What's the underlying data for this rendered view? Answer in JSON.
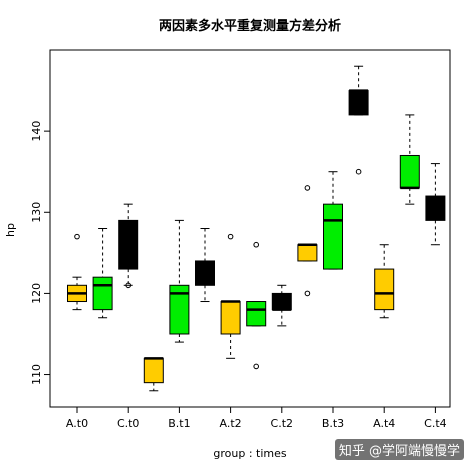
{
  "chart_data": {
    "type": "boxplot",
    "title": "两因素多水平重复测量方差分析",
    "xlabel": "group : times",
    "ylabel": "hp",
    "ylim": [
      106,
      150
    ],
    "yticks": [
      110,
      120,
      130,
      140
    ],
    "tick_labels": [
      "A.t0",
      "C.t0",
      "B.t1",
      "A.t2",
      "C.t2",
      "B.t3",
      "A.t4",
      "C.t4"
    ],
    "colors": {
      "gold": "#FFCC00",
      "green": "#00EE00",
      "black": "#000000",
      "median_on_black": "#000000"
    },
    "boxes": [
      {
        "min": 118,
        "q1": 119,
        "median": 120,
        "q3": 121,
        "max": 122,
        "outliers": [
          127
        ],
        "color": "gold"
      },
      {
        "min": 117,
        "q1": 118,
        "median": 121,
        "q3": 122,
        "max": 128,
        "outliers": [],
        "color": "green"
      },
      {
        "min": 121,
        "q1": 123,
        "median": 127,
        "q3": 129,
        "max": 131,
        "outliers": [
          121
        ],
        "color": "black"
      },
      {
        "min": 108,
        "q1": 109,
        "median": 112,
        "q3": 112,
        "max": 112,
        "outliers": [],
        "color": "gold"
      },
      {
        "min": 114,
        "q1": 115,
        "median": 120,
        "q3": 121,
        "max": 129,
        "outliers": [],
        "color": "green"
      },
      {
        "min": 119,
        "q1": 121,
        "median": 122,
        "q3": 124,
        "max": 128,
        "outliers": [],
        "color": "black"
      },
      {
        "min": 112,
        "q1": 115,
        "median": 119,
        "q3": 119,
        "max": 119,
        "outliers": [
          127
        ],
        "color": "gold"
      },
      {
        "min": 116,
        "q1": 116,
        "median": 118,
        "q3": 119,
        "max": 119,
        "outliers": [
          126,
          111
        ],
        "color": "green"
      },
      {
        "min": 116,
        "q1": 118,
        "median": 118,
        "q3": 120,
        "max": 121,
        "outliers": [],
        "color": "black"
      },
      {
        "min": 124,
        "q1": 124,
        "median": 126,
        "q3": 126,
        "max": 126,
        "outliers": [
          133,
          120
        ],
        "color": "gold"
      },
      {
        "min": 123,
        "q1": 123,
        "median": 129,
        "q3": 131,
        "max": 135,
        "outliers": [],
        "color": "green"
      },
      {
        "min": 142,
        "q1": 142,
        "median": 145,
        "q3": 145,
        "max": 148,
        "outliers": [
          135
        ],
        "color": "black"
      },
      {
        "min": 117,
        "q1": 118,
        "median": 120,
        "q3": 123,
        "max": 126,
        "outliers": [],
        "color": "gold"
      },
      {
        "min": 131,
        "q1": 133,
        "median": 133,
        "q3": 137,
        "max": 142,
        "outliers": [],
        "color": "green"
      },
      {
        "min": 126,
        "q1": 129,
        "median": 130,
        "q3": 132,
        "max": 136,
        "outliers": [],
        "color": "black"
      }
    ]
  },
  "watermark": "知乎 @学阿端慢慢学"
}
